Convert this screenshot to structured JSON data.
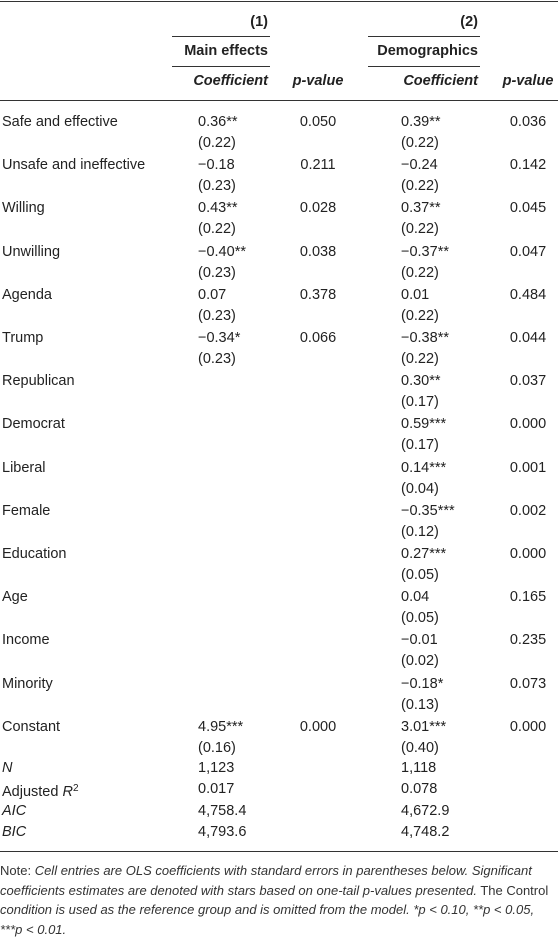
{
  "header": {
    "model_numbers": [
      "(1)",
      "(2)"
    ],
    "model_names": [
      "Main effects",
      "Demographics"
    ],
    "column_labels": [
      "Coefficient",
      "p-value",
      "Coefficient",
      "p-value"
    ]
  },
  "rows": [
    {
      "label": "Safe and effective",
      "m1_coef": "0.36**",
      "m1_se": "(0.22)",
      "m1_p": "0.050",
      "m2_coef": "0.39**",
      "m2_se": "(0.22)",
      "m2_p": "0.036"
    },
    {
      "label": "Unsafe and ineffective",
      "m1_coef": "−0.18",
      "m1_se": "(0.23)",
      "m1_p": "0.211",
      "m2_coef": "−0.24",
      "m2_se": "(0.22)",
      "m2_p": "0.142"
    },
    {
      "label": "Willing",
      "m1_coef": "0.43**",
      "m1_se": "(0.22)",
      "m1_p": "0.028",
      "m2_coef": "0.37**",
      "m2_se": "(0.22)",
      "m2_p": "0.045"
    },
    {
      "label": "Unwilling",
      "m1_coef": "−0.40**",
      "m1_se": "(0.23)",
      "m1_p": "0.038",
      "m2_coef": "−0.37**",
      "m2_se": "(0.22)",
      "m2_p": "0.047"
    },
    {
      "label": "Agenda",
      "m1_coef": "0.07",
      "m1_se": "(0.23)",
      "m1_p": "0.378",
      "m2_coef": "0.01",
      "m2_se": "(0.22)",
      "m2_p": "0.484"
    },
    {
      "label": "Trump",
      "m1_coef": "−0.34*",
      "m1_se": "(0.23)",
      "m1_p": "0.066",
      "m2_coef": "−0.38**",
      "m2_se": "(0.22)",
      "m2_p": "0.044"
    },
    {
      "label": "Republican",
      "m2_coef": "0.30**",
      "m2_se": "(0.17)",
      "m2_p": "0.037"
    },
    {
      "label": "Democrat",
      "m2_coef": "0.59***",
      "m2_se": "(0.17)",
      "m2_p": "0.000"
    },
    {
      "label": "Liberal",
      "m2_coef": "0.14***",
      "m2_se": "(0.04)",
      "m2_p": "0.001"
    },
    {
      "label": "Female",
      "m2_coef": "−0.35***",
      "m2_se": "(0.12)",
      "m2_p": "0.002"
    },
    {
      "label": "Education",
      "m2_coef": "0.27***",
      "m2_se": "(0.05)",
      "m2_p": "0.000"
    },
    {
      "label": "Age",
      "m2_coef": "0.04",
      "m2_se": "(0.05)",
      "m2_p": "0.165"
    },
    {
      "label": "Income",
      "m2_coef": "−0.01",
      "m2_se": "(0.02)",
      "m2_p": "0.235"
    },
    {
      "label": "Minority",
      "m2_coef": "−0.18*",
      "m2_se": "(0.13)",
      "m2_p": "0.073"
    },
    {
      "label": "Constant",
      "m1_coef": "4.95***",
      "m1_se": "(0.16)",
      "m1_p": "0.000",
      "m2_coef": "3.01***",
      "m2_se": "(0.40)",
      "m2_p": "0.000"
    }
  ],
  "stats": [
    {
      "label": "N",
      "m1": "1,123",
      "m2": "1,118"
    },
    {
      "label": "Adjusted ",
      "label_italic": "R",
      "label_sup": "2",
      "m1": "0.017",
      "m2": "0.078"
    },
    {
      "label": "AIC",
      "m1": "4,758.4",
      "m2": "4,672.9"
    },
    {
      "label": "BIC",
      "m1": "4,793.6",
      "m2": "4,748.2"
    }
  ],
  "note": [
    "Note: ",
    "Cell entries are OLS coefficients with standard errors in parentheses below. Significant coefficients estimates are denoted with stars based on one-tail p-values presented.",
    " The Control ",
    "condition is used as the reference group and is omitted from the model.",
    " *p < 0.10, **p < 0.05, ***p < 0.01."
  ]
}
